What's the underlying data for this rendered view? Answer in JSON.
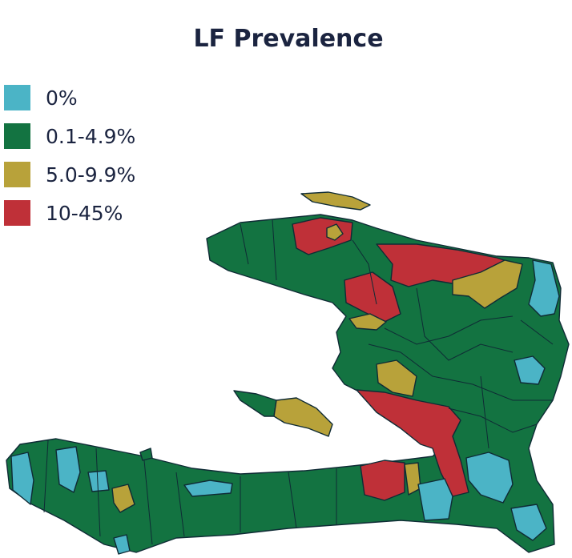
{
  "title": "LF Prevalence",
  "legend": [
    {
      "label": "0%",
      "color": "#4bb4c6"
    },
    {
      "label": "0.1-4.9%",
      "color": "#137341"
    },
    {
      "label": "5.0-9.9%",
      "color": "#b8a23a"
    },
    {
      "label": "10-45%",
      "color": "#bf3038"
    }
  ]
}
